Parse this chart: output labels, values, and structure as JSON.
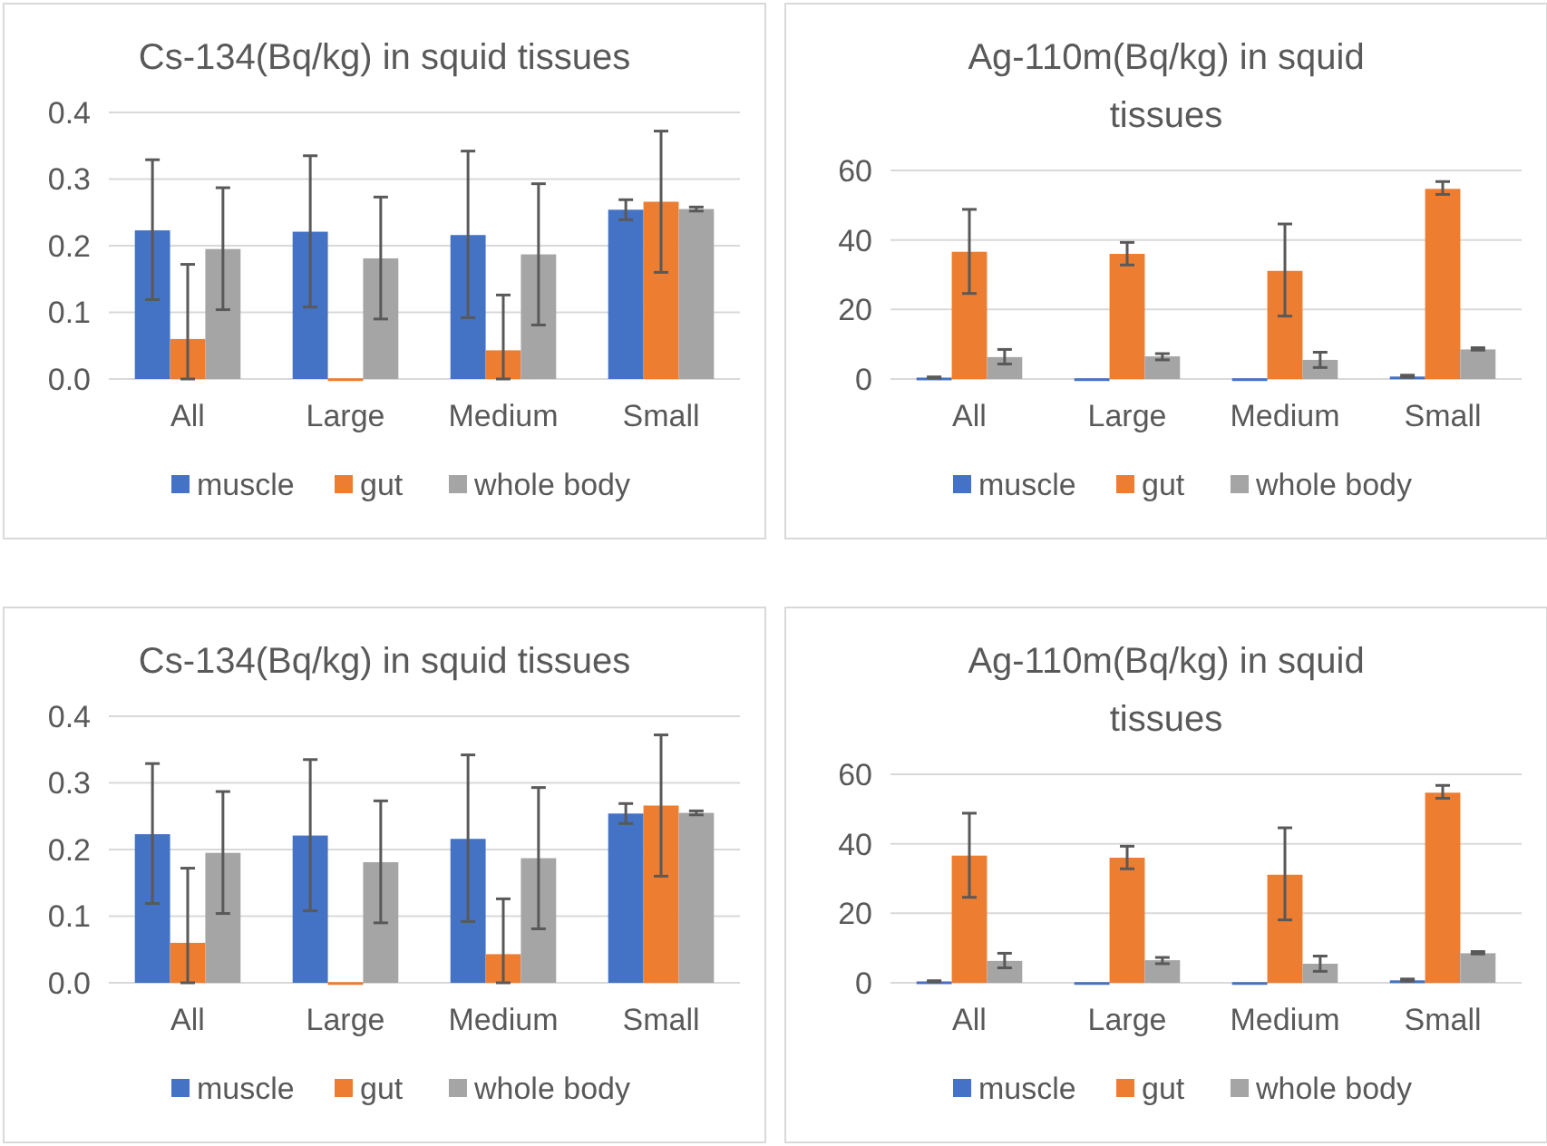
{
  "chart_data": [
    {
      "type": "bar",
      "title": "Cs-134(Bq/kg) in squid tissues",
      "categories": [
        "All",
        "Large",
        "Medium",
        "Small"
      ],
      "ylim": [
        0,
        0.4
      ],
      "yticks": [
        {
          "value": 0,
          "label": "0.0"
        },
        {
          "value": 0.1,
          "label": "0.1"
        },
        {
          "value": 0.2,
          "label": "0.2"
        },
        {
          "value": 0.3,
          "label": "0.3"
        },
        {
          "value": 0.4,
          "label": "0.4"
        }
      ],
      "grid": "y",
      "legend": "bottom",
      "series": [
        {
          "name": "muscle",
          "color": "#4472c4",
          "values": [
            0.223,
            0.221,
            0.216,
            0.254
          ],
          "errors": [
            [
              0.119,
              0.329
            ],
            [
              0.108,
              0.335
            ],
            [
              0.092,
              0.342
            ],
            [
              0.239,
              0.269
            ]
          ]
        },
        {
          "name": "gut",
          "color": "#ed7d31",
          "values": [
            0.06,
            0.001,
            0.043,
            0.266
          ],
          "errors": [
            [
              0,
              0.172
            ],
            null,
            [
              0,
              0.126
            ],
            [
              0.16,
              0.372
            ]
          ]
        },
        {
          "name": "whole body",
          "color": "#a5a5a5",
          "values": [
            0.195,
            0.181,
            0.187,
            0.255
          ],
          "errors": [
            [
              0.104,
              0.287
            ],
            [
              0.09,
              0.273
            ],
            [
              0.081,
              0.293
            ],
            [
              0.252,
              0.258
            ]
          ]
        }
      ]
    },
    {
      "type": "bar",
      "title": "Ag-110m(Bq/kg) in squid tissues",
      "categories": [
        "All",
        "Large",
        "Medium",
        "Small"
      ],
      "ylim": [
        0,
        60
      ],
      "yticks": [
        0,
        20,
        40,
        60
      ],
      "grid": "y",
      "legend": "bottom",
      "series": [
        {
          "name": "muscle",
          "color": "#4472c4",
          "values": [
            0.4,
            0.2,
            0.2,
            0.7
          ],
          "errors": [
            [
              0.3,
              0.6
            ],
            null,
            null,
            [
              0.5,
              1.1
            ]
          ]
        },
        {
          "name": "gut",
          "color": "#ed7d31",
          "values": [
            36.6,
            36,
            31.1,
            54.7
          ],
          "errors": [
            [
              24.6,
              48.8
            ],
            [
              32.8,
              39.3
            ],
            [
              18.1,
              44.6
            ],
            [
              53.1,
              56.8
            ]
          ]
        },
        {
          "name": "whole body",
          "color": "#a5a5a5",
          "values": [
            6.3,
            6.5,
            5.5,
            8.5
          ],
          "errors": [
            [
              4.3,
              8.5
            ],
            [
              5.5,
              7.3
            ],
            [
              3.3,
              7.7
            ],
            [
              8.3,
              9
            ]
          ]
        }
      ]
    },
    {
      "type": "bar",
      "title": "Cs-134(Bq/kg) in squid tissues",
      "categories": [
        "All",
        "Large",
        "Medium",
        "Small"
      ],
      "ylim": [
        0,
        0.4
      ],
      "yticks": [
        {
          "value": 0,
          "label": "0.0"
        },
        {
          "value": 0.1,
          "label": "0.1"
        },
        {
          "value": 0.2,
          "label": "0.2"
        },
        {
          "value": 0.3,
          "label": "0.3"
        },
        {
          "value": 0.4,
          "label": "0.4"
        }
      ],
      "grid": "y",
      "legend": "bottom",
      "series": [
        {
          "name": "muscle",
          "color": "#4472c4",
          "values": [
            0.223,
            0.221,
            0.216,
            0.254
          ],
          "errors": [
            [
              0.119,
              0.329
            ],
            [
              0.108,
              0.335
            ],
            [
              0.092,
              0.342
            ],
            [
              0.239,
              0.269
            ]
          ]
        },
        {
          "name": "gut",
          "color": "#ed7d31",
          "values": [
            0.06,
            0.001,
            0.043,
            0.266
          ],
          "errors": [
            [
              0,
              0.172
            ],
            null,
            [
              0,
              0.126
            ],
            [
              0.16,
              0.372
            ]
          ]
        },
        {
          "name": "whole body",
          "color": "#a5a5a5",
          "values": [
            0.195,
            0.181,
            0.187,
            0.255
          ],
          "errors": [
            [
              0.104,
              0.287
            ],
            [
              0.09,
              0.273
            ],
            [
              0.081,
              0.293
            ],
            [
              0.252,
              0.258
            ]
          ]
        }
      ]
    },
    {
      "type": "bar",
      "title": "Ag-110m(Bq/kg) in squid tissues",
      "categories": [
        "All",
        "Large",
        "Medium",
        "Small"
      ],
      "ylim": [
        0,
        60
      ],
      "yticks": [
        0,
        20,
        40,
        60
      ],
      "grid": "y",
      "legend": "bottom",
      "series": [
        {
          "name": "muscle",
          "color": "#4472c4",
          "values": [
            0.4,
            0.2,
            0.2,
            0.7
          ],
          "errors": [
            [
              0.3,
              0.6
            ],
            null,
            null,
            [
              0.5,
              1.1
            ]
          ]
        },
        {
          "name": "gut",
          "color": "#ed7d31",
          "values": [
            36.6,
            36,
            31.1,
            54.7
          ],
          "errors": [
            [
              24.6,
              48.8
            ],
            [
              32.8,
              39.3
            ],
            [
              18.1,
              44.6
            ],
            [
              53.1,
              56.8
            ]
          ]
        },
        {
          "name": "whole body",
          "color": "#a5a5a5",
          "values": [
            6.3,
            6.5,
            5.5,
            8.5
          ],
          "errors": [
            [
              4.3,
              8.5
            ],
            [
              5.5,
              7.3
            ],
            [
              3.3,
              7.7
            ],
            [
              8.3,
              9
            ]
          ]
        }
      ]
    }
  ]
}
